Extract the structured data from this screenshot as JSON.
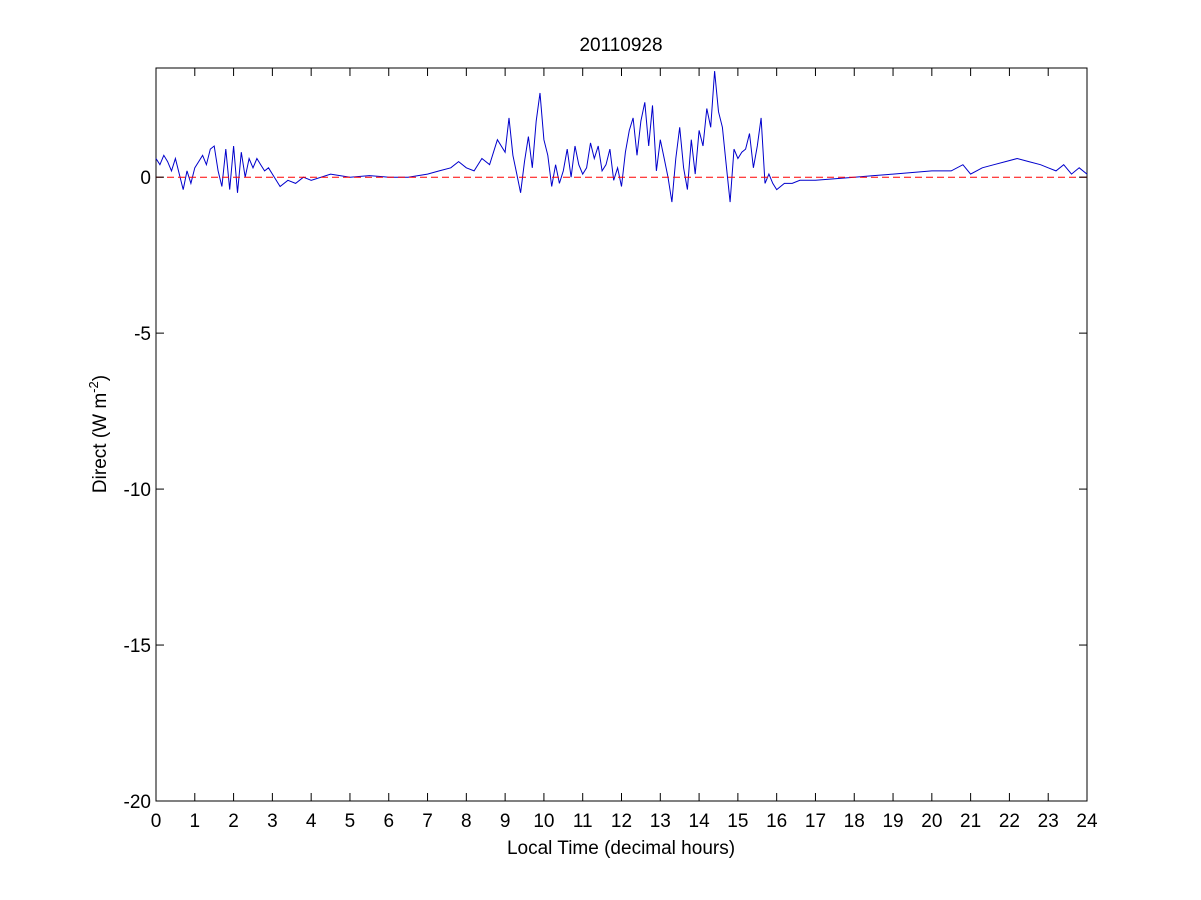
{
  "chart_data": {
    "type": "line",
    "title": "20110928",
    "xlabel": "Local Time (decimal hours)",
    "ylabel_main": "Direct (W m",
    "ylabel_sup": "-2",
    "ylabel_close": ")",
    "xlim": [
      0,
      24
    ],
    "ylim": [
      -20,
      3.5
    ],
    "xticks": [
      0,
      1,
      2,
      3,
      4,
      5,
      6,
      7,
      8,
      9,
      10,
      11,
      12,
      13,
      14,
      15,
      16,
      17,
      18,
      19,
      20,
      21,
      22,
      23,
      24
    ],
    "xtick_labels": [
      "0",
      "1",
      "2",
      "3",
      "4",
      "5",
      "6",
      "7",
      "8",
      "9",
      "10",
      "11",
      "12",
      "13",
      "14",
      "15",
      "16",
      "17",
      "18",
      "19",
      "20",
      "21",
      "22",
      "23",
      "24"
    ],
    "yticks": [
      -20,
      -15,
      -10,
      -5,
      0
    ],
    "ytick_labels": [
      "-20",
      "-15",
      "-10",
      "-5",
      "0"
    ],
    "grid": false,
    "legend": "none",
    "series": [
      {
        "color": "#0000cc",
        "style": "solid",
        "x": [
          0,
          0.1,
          0.2,
          0.3,
          0.4,
          0.5,
          0.6,
          0.7,
          0.8,
          0.9,
          1.0,
          1.1,
          1.2,
          1.3,
          1.4,
          1.5,
          1.6,
          1.7,
          1.8,
          1.9,
          2.0,
          2.1,
          2.2,
          2.3,
          2.4,
          2.5,
          2.6,
          2.7,
          2.8,
          2.9,
          3.0,
          3.2,
          3.4,
          3.6,
          3.8,
          4.0,
          4.5,
          5.0,
          5.5,
          6.0,
          6.5,
          7.0,
          7.3,
          7.6,
          7.8,
          8.0,
          8.2,
          8.4,
          8.6,
          8.8,
          9.0,
          9.1,
          9.2,
          9.3,
          9.4,
          9.5,
          9.6,
          9.7,
          9.8,
          9.9,
          10.0,
          10.1,
          10.2,
          10.3,
          10.4,
          10.5,
          10.6,
          10.7,
          10.8,
          10.9,
          11.0,
          11.1,
          11.2,
          11.3,
          11.4,
          11.5,
          11.6,
          11.7,
          11.8,
          11.9,
          12.0,
          12.1,
          12.2,
          12.3,
          12.4,
          12.5,
          12.6,
          12.7,
          12.8,
          12.9,
          13.0,
          13.1,
          13.2,
          13.3,
          13.4,
          13.5,
          13.6,
          13.7,
          13.8,
          13.9,
          14.0,
          14.1,
          14.2,
          14.3,
          14.4,
          14.5,
          14.6,
          14.7,
          14.8,
          14.9,
          15.0,
          15.1,
          15.2,
          15.3,
          15.4,
          15.5,
          15.6,
          15.7,
          15.8,
          15.9,
          16.0,
          16.2,
          16.4,
          16.6,
          16.8,
          17.0,
          17.5,
          18.0,
          18.5,
          19.0,
          19.5,
          20.0,
          20.5,
          20.8,
          21.0,
          21.3,
          21.6,
          21.9,
          22.2,
          22.5,
          22.8,
          23.0,
          23.2,
          23.4,
          23.6,
          23.8,
          24.0
        ],
        "y": [
          0.6,
          0.4,
          0.7,
          0.5,
          0.2,
          0.6,
          0.1,
          -0.4,
          0.2,
          -0.2,
          0.3,
          0.5,
          0.7,
          0.4,
          0.9,
          1.0,
          0.2,
          -0.3,
          0.9,
          -0.4,
          1.0,
          -0.5,
          0.8,
          0.0,
          0.6,
          0.3,
          0.6,
          0.4,
          0.2,
          0.3,
          0.1,
          -0.3,
          -0.1,
          -0.2,
          0.0,
          -0.1,
          0.1,
          0.0,
          0.05,
          0.0,
          0.0,
          0.1,
          0.2,
          0.3,
          0.5,
          0.3,
          0.2,
          0.6,
          0.4,
          1.2,
          0.8,
          1.9,
          0.7,
          0.1,
          -0.5,
          0.5,
          1.3,
          0.3,
          1.8,
          2.7,
          1.2,
          0.7,
          -0.3,
          0.4,
          -0.2,
          0.2,
          0.9,
          0.0,
          1.0,
          0.4,
          0.1,
          0.3,
          1.1,
          0.6,
          1.0,
          0.2,
          0.4,
          0.9,
          -0.1,
          0.3,
          -0.3,
          0.8,
          1.5,
          1.9,
          0.7,
          1.8,
          2.4,
          1.0,
          2.3,
          0.2,
          1.2,
          0.6,
          0.0,
          -0.8,
          0.6,
          1.6,
          0.3,
          -0.4,
          1.2,
          0.1,
          1.5,
          1.0,
          2.2,
          1.6,
          3.4,
          2.1,
          1.6,
          0.4,
          -0.8,
          0.9,
          0.6,
          0.8,
          0.9,
          1.4,
          0.3,
          1.0,
          1.9,
          -0.2,
          0.1,
          -0.2,
          -0.4,
          -0.2,
          -0.2,
          -0.1,
          -0.1,
          -0.1,
          -0.05,
          0.0,
          0.05,
          0.1,
          0.15,
          0.2,
          0.2,
          0.4,
          0.1,
          0.3,
          0.4,
          0.5,
          0.6,
          0.5,
          0.4,
          0.3,
          0.2,
          0.4,
          0.1,
          0.3,
          0.1
        ]
      },
      {
        "color": "#ff0000",
        "style": "dashed",
        "x": [
          0,
          24
        ],
        "y": [
          0,
          0
        ]
      }
    ]
  }
}
